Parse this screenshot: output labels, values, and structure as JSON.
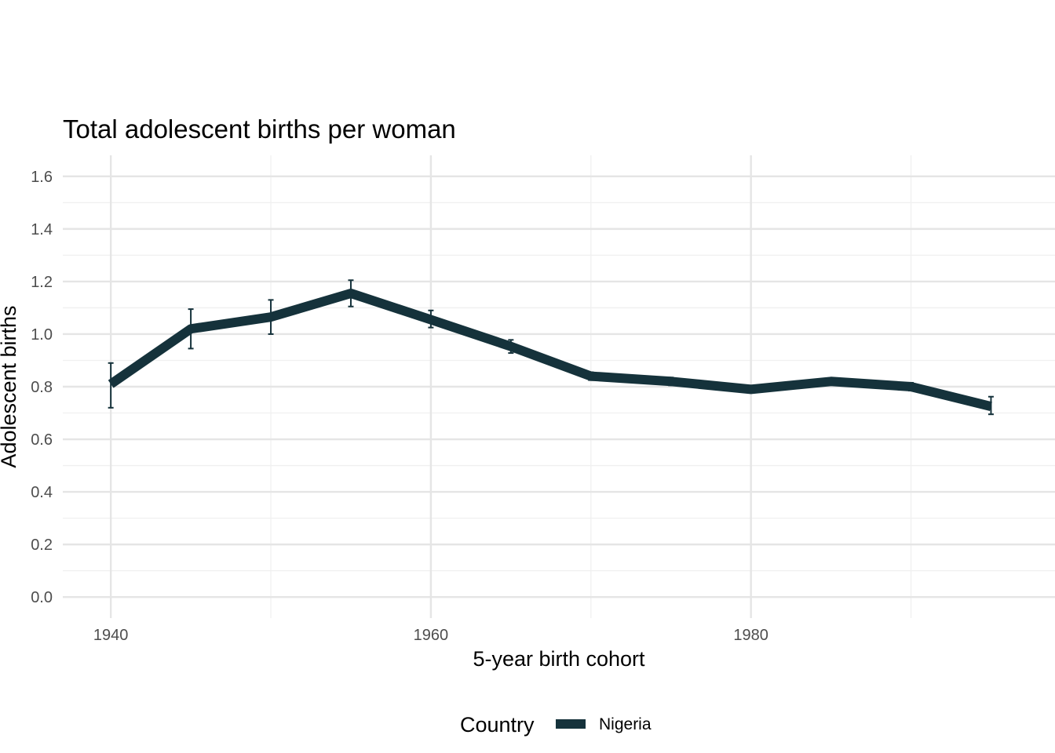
{
  "chart_data": {
    "type": "line",
    "title": "Total adolescent births per woman",
    "xlabel": "5-year birth cohort",
    "ylabel": "Adolescent births",
    "xlim": [
      1937,
      1999
    ],
    "ylim": [
      -0.08,
      1.68
    ],
    "x_ticks": [
      1940,
      1960,
      1980
    ],
    "y_ticks": [
      0.0,
      0.2,
      0.4,
      0.6,
      0.8,
      1.0,
      1.2,
      1.4,
      1.6
    ],
    "x_tick_labels": [
      "1940",
      "1960",
      "1980"
    ],
    "y_tick_labels": [
      "0.0",
      "0.2",
      "0.4",
      "0.6",
      "0.8",
      "1.0",
      "1.2",
      "1.4",
      "1.6"
    ],
    "grid": true,
    "legend": {
      "title": "Country",
      "position": "bottom"
    },
    "series": [
      {
        "name": "Nigeria",
        "color": "#15323b",
        "x": [
          1940,
          1945,
          1950,
          1955,
          1960,
          1965,
          1970,
          1975,
          1980,
          1985,
          1990,
          1995
        ],
        "y": [
          0.81,
          1.02,
          1.065,
          1.155,
          1.055,
          0.953,
          0.84,
          0.82,
          0.79,
          0.82,
          0.8,
          0.725
        ],
        "lower": [
          0.72,
          0.945,
          1.0,
          1.105,
          1.025,
          0.928,
          0.825,
          0.805,
          0.778,
          0.81,
          0.785,
          0.695
        ],
        "upper": [
          0.89,
          1.095,
          1.13,
          1.205,
          1.09,
          0.978,
          0.855,
          0.835,
          0.8,
          0.83,
          0.815,
          0.762
        ]
      }
    ]
  }
}
